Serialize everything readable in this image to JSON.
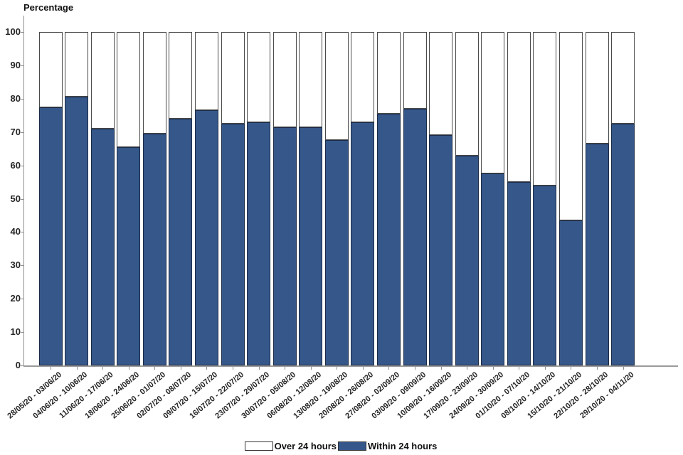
{
  "chart_data": {
    "type": "bar",
    "stacked": true,
    "title": "Percentage",
    "ylabel": "Percentage",
    "xlabel": "",
    "ylim": [
      0,
      100
    ],
    "ytick_step": 10,
    "grid": false,
    "legend_position": "bottom",
    "categories": [
      "28/05/20 - 03/06/20",
      "04/06/20 - 10/06/20",
      "11/06/20 - 17/06/20",
      "18/06/20 - 24/06/20",
      "25/06/20 - 01/07/20",
      "02/07/20 - 08/07/20",
      "09/07/20 - 15/07/20",
      "16/07/20 - 22/07/20",
      "23/07/20 - 29/07/20",
      "30/07/20 - 05/08/20",
      "06/08/20 - 12/08/20",
      "13/08/20 - 19/08/20",
      "20/08/20 - 26/08/20",
      "27/08/20 - 02/09/20",
      "03/09/20 - 09/09/20",
      "10/09/20 - 16/09/20",
      "17/09/20 - 23/09/20",
      "24/09/20 - 30/09/20",
      "01/10/20 - 07/10/20",
      "08/10/20 - 14/10/20",
      "15/10/20 - 21/10/20",
      "22/10/20 - 28/10/20",
      "29/10/20 - 04/11/20"
    ],
    "series": [
      {
        "name": "Over 24 hours",
        "color": "#ffffff",
        "values": [
          22.5,
          19.5,
          29.0,
          34.5,
          30.5,
          26.0,
          23.5,
          27.5,
          27.0,
          28.5,
          28.5,
          32.5,
          27.0,
          24.5,
          23.0,
          31.0,
          37.0,
          42.5,
          45.0,
          46.0,
          56.5,
          33.5,
          27.5
        ]
      },
      {
        "name": "Within 24 hours",
        "color": "#35578a",
        "values": [
          77.5,
          80.5,
          71.0,
          65.5,
          69.5,
          74.0,
          76.5,
          72.5,
          73.0,
          71.5,
          71.5,
          67.5,
          73.0,
          75.5,
          77.0,
          69.0,
          63.0,
          57.5,
          55.0,
          54.0,
          43.5,
          66.5,
          72.5
        ]
      }
    ],
    "legend": [
      {
        "label": "Over 24 hours",
        "color": "#ffffff"
      },
      {
        "label": "Within 24 hours",
        "color": "#35578a"
      }
    ]
  }
}
